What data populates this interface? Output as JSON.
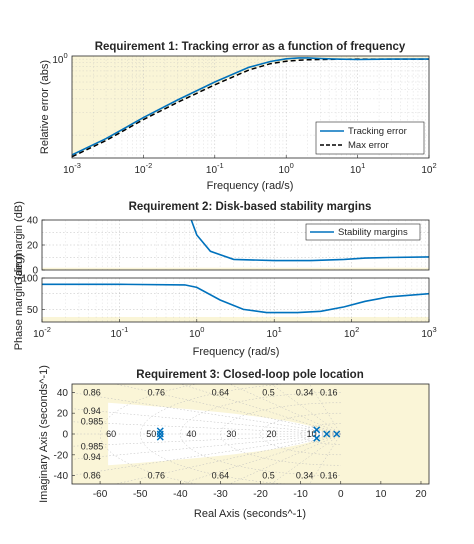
{
  "colors": {
    "background": "#ffffff",
    "axes_border": "#262626",
    "region_fill": "#faf5d7",
    "tracking_line": "#0072BD",
    "max_line": "#000000",
    "pole_marker": "#0072BD",
    "grid_line": "#bdbdbd"
  },
  "chart_data": [
    {
      "type": "line",
      "title": "Requirement 1: Tracking error as a function of frequency",
      "xlabel": "Frequency (rad/s)",
      "ylabel": "Relative error (abs)",
      "xscale": "log",
      "yscale": "log",
      "xlim": [
        0.001,
        100
      ],
      "ylim": [
        0.05,
        1.1
      ],
      "x_tick_labels": [
        "10^-3",
        "10^-2",
        "10^-1",
        "10^0",
        "10^1",
        "10^2"
      ],
      "y_tick_labels": [
        "10^0"
      ],
      "grid": true,
      "legend": "bottom-right",
      "shaded_region": "above Max error curve",
      "series": [
        {
          "name": "Tracking error",
          "x": [
            0.001,
            0.003,
            0.01,
            0.03,
            0.1,
            0.3,
            0.6,
            1,
            1.5,
            2,
            3,
            5,
            10,
            30,
            100
          ],
          "y": [
            0.055,
            0.09,
            0.17,
            0.29,
            0.5,
            0.78,
            0.93,
            1.01,
            1.04,
            1.04,
            1.02,
            1.0,
            0.99,
            1.0,
            1.0
          ]
        },
        {
          "name": "Max error",
          "x": [
            0.001,
            0.003,
            0.01,
            0.03,
            0.1,
            0.3,
            0.6,
            1,
            1.5,
            2,
            3,
            5,
            10,
            30,
            100
          ],
          "y": [
            0.052,
            0.085,
            0.16,
            0.27,
            0.46,
            0.72,
            0.87,
            0.94,
            0.97,
            0.98,
            0.99,
            0.995,
            1.0,
            1.0,
            1.0
          ]
        }
      ]
    },
    {
      "type": "line",
      "title": "Requirement 2: Disk-based stability margins",
      "ylabel": "Gain margin (dB)",
      "xscale": "log",
      "xlim": [
        0.01,
        1000
      ],
      "ylim": [
        0,
        40
      ],
      "y_tick_labels": [
        "0",
        "20",
        "40"
      ],
      "grid": true,
      "legend": "top-right",
      "shaded_region": "below 1.8 dB",
      "series": [
        {
          "name": "Stability margins",
          "x": [
            0.85,
            1,
            1.5,
            3,
            10,
            30,
            80,
            150,
            300,
            1000
          ],
          "y": [
            40,
            28,
            15,
            8.5,
            7.5,
            7.5,
            8.5,
            9.5,
            10,
            10.5
          ]
        }
      ]
    },
    {
      "type": "line",
      "xlabel": "Frequency (rad/s)",
      "ylabel": "Phase margin (deg)",
      "xscale": "log",
      "xlim": [
        0.01,
        1000
      ],
      "ylim": [
        30,
        100
      ],
      "x_tick_labels": [
        "10^-2",
        "10^-1",
        "10^0",
        "10^1",
        "10^2",
        "10^3"
      ],
      "y_tick_labels": [
        "50",
        "100"
      ],
      "grid": true,
      "shaded_region": "below 38 deg",
      "series": [
        {
          "name": "Stability margins",
          "x": [
            0.01,
            0.1,
            0.7,
            1,
            2,
            4,
            8,
            20,
            40,
            80,
            150,
            300,
            1000
          ],
          "y": [
            90,
            90,
            89,
            85,
            65,
            50,
            45,
            45,
            47,
            54,
            63,
            70,
            75
          ]
        }
      ]
    },
    {
      "type": "scatter",
      "title": "Requirement 3: Closed-loop pole location",
      "xlabel": "Real Axis (seconds^-1)",
      "ylabel": "Imaginary Axis (seconds^-1)",
      "xlim": [
        -67,
        22
      ],
      "ylim": [
        -48,
        48
      ],
      "x_tick_labels": [
        "-60",
        "-50",
        "-40",
        "-30",
        "-20",
        "-10",
        "0",
        "10",
        "20"
      ],
      "y_tick_labels": [
        "-40",
        "-20",
        "0",
        "20",
        "40"
      ],
      "grid": "s-plane damping and natural frequency grid",
      "damping_labels": [
        "0.86",
        "0.76",
        "0.64",
        "0.5",
        "0.34",
        "0.16",
        "0.94",
        "0.985"
      ],
      "frequency_labels": [
        "60",
        "50",
        "40",
        "30",
        "20",
        "10"
      ],
      "shaded_region": "outside allowed pole region",
      "poles": [
        {
          "re": -45,
          "im": 3
        },
        {
          "re": -45,
          "im": 0
        },
        {
          "re": -45,
          "im": -3
        },
        {
          "re": -6,
          "im": 4
        },
        {
          "re": -6,
          "im": -4
        },
        {
          "re": -3.5,
          "im": 0
        },
        {
          "re": -1,
          "im": 0
        }
      ]
    }
  ]
}
